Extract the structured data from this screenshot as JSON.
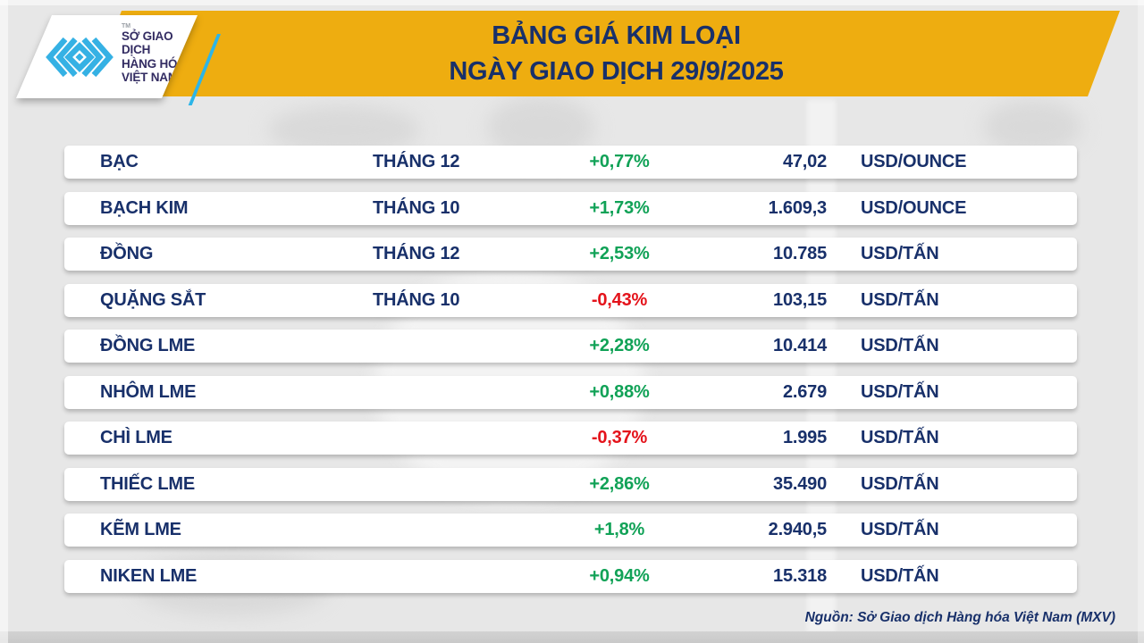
{
  "colors": {
    "banner_yellow": "#EEAD10",
    "navy": "#18306A",
    "logo_indigo": "#332C62",
    "logo_blue": "#35B1E4",
    "green": "#11A257",
    "red": "#E4131B"
  },
  "header": {
    "title_line1": "BẢNG GIÁ KIM LOẠI",
    "title_line2": "NGÀY GIAO DỊCH 29/9/2025",
    "logo": {
      "tm": "TM",
      "text_line1": "SỞ GIAO DỊCH",
      "text_line2": "HÀNG HÓA",
      "text_line3": "VIỆT NAM"
    }
  },
  "chart_data": {
    "type": "table",
    "title": "BẢNG GIÁ KIM LOẠI",
    "subtitle": "NGÀY GIAO DỊCH 29/9/2025",
    "columns": [
      "commodity",
      "contract_month",
      "change_percent",
      "price",
      "unit"
    ],
    "rows": [
      {
        "name": "BẠC",
        "month": "THÁNG 12",
        "change": "+0,77%",
        "direction": "up",
        "price": "47,02",
        "unit": "USD/OUNCE"
      },
      {
        "name": "BẠCH KIM",
        "month": "THÁNG 10",
        "change": "+1,73%",
        "direction": "up",
        "price": "1.609,3",
        "unit": "USD/OUNCE"
      },
      {
        "name": "ĐỒNG",
        "month": "THÁNG 12",
        "change": "+2,53%",
        "direction": "up",
        "price": "10.785",
        "unit": "USD/TẤN"
      },
      {
        "name": "QUẶNG SẮT",
        "month": "THÁNG 10",
        "change": "-0,43%",
        "direction": "down",
        "price": "103,15",
        "unit": "USD/TẤN"
      },
      {
        "name": "ĐỒNG LME",
        "month": "",
        "change": "+2,28%",
        "direction": "up",
        "price": "10.414",
        "unit": "USD/TẤN"
      },
      {
        "name": "NHÔM LME",
        "month": "",
        "change": "+0,88%",
        "direction": "up",
        "price": "2.679",
        "unit": "USD/TẤN"
      },
      {
        "name": "CHÌ LME",
        "month": "",
        "change": "-0,37%",
        "direction": "down",
        "price": "1.995",
        "unit": "USD/TẤN"
      },
      {
        "name": "THIẾC LME",
        "month": "",
        "change": "+2,86%",
        "direction": "up",
        "price": "35.490",
        "unit": "USD/TẤN"
      },
      {
        "name": "KẼM LME",
        "month": "",
        "change": "+1,8%",
        "direction": "up",
        "price": "2.940,5",
        "unit": "USD/TẤN"
      },
      {
        "name": "NIKEN LME",
        "month": "",
        "change": "+0,94%",
        "direction": "up",
        "price": "15.318",
        "unit": "USD/TẤN"
      }
    ],
    "source": "Nguồn: Sở Giao dịch Hàng hóa Việt Nam (MXV)"
  },
  "footer": {
    "source": "Nguồn: Sở Giao dịch Hàng hóa Việt Nam (MXV)"
  }
}
